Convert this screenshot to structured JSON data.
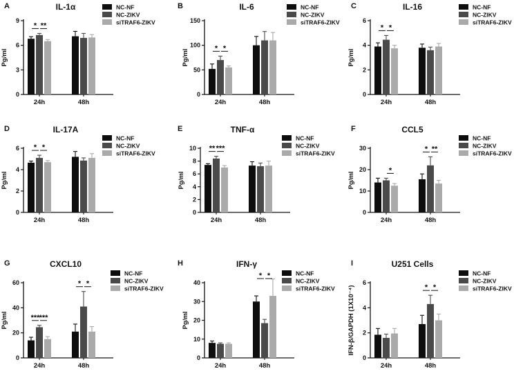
{
  "series_colors": [
    "#0d0d0d",
    "#4a4a4a",
    "#aaaaaa"
  ],
  "chart_data": [
    {
      "type": "bar",
      "panel": "A",
      "title": "IL-1α",
      "ylabel": "Pg/ml",
      "ylim": [
        0,
        9
      ],
      "yticks": [
        0,
        3,
        6,
        9
      ],
      "categories": [
        "24h",
        "48h"
      ],
      "series": [
        {
          "name": "NC-NF",
          "values": [
            6.8,
            7.1
          ],
          "errors": [
            0.25,
            0.6
          ]
        },
        {
          "name": "NC-ZIKV",
          "values": [
            7.25,
            6.9
          ],
          "errors": [
            0.2,
            0.55
          ]
        },
        {
          "name": "siTRAF6-ZIKV",
          "values": [
            6.5,
            6.95
          ],
          "errors": [
            0.2,
            0.35
          ]
        }
      ],
      "significance": [
        {
          "category": "24h",
          "from": 0,
          "to": 1,
          "label": "*"
        },
        {
          "category": "24h",
          "from": 1,
          "to": 2,
          "label": "**"
        }
      ]
    },
    {
      "type": "bar",
      "panel": "B",
      "title": "IL-6",
      "ylabel": "Pg/ml",
      "ylim": [
        0,
        150
      ],
      "yticks": [
        0,
        50,
        100,
        150
      ],
      "categories": [
        "24h",
        "48h"
      ],
      "series": [
        {
          "name": "NC-NF",
          "values": [
            52,
            100
          ],
          "errors": [
            10,
            18
          ]
        },
        {
          "name": "NC-ZIKV",
          "values": [
            70,
            110
          ],
          "errors": [
            8,
            18
          ]
        },
        {
          "name": "siTRAF6-ZIKV",
          "values": [
            55,
            110
          ],
          "errors": [
            3,
            16
          ]
        }
      ],
      "significance": [
        {
          "category": "24h",
          "from": 0,
          "to": 1,
          "label": "*"
        },
        {
          "category": "24h",
          "from": 1,
          "to": 2,
          "label": "*"
        }
      ]
    },
    {
      "type": "bar",
      "panel": "C",
      "title": "IL-16",
      "ylabel": "Pg/ml",
      "ylim": [
        0,
        6
      ],
      "yticks": [
        0,
        2,
        4,
        6
      ],
      "categories": [
        "24h",
        "48h"
      ],
      "series": [
        {
          "name": "NC-NF",
          "values": [
            3.9,
            3.8
          ],
          "errors": [
            0.3,
            0.3
          ]
        },
        {
          "name": "NC-ZIKV",
          "values": [
            4.45,
            3.6
          ],
          "errors": [
            0.35,
            0.25
          ]
        },
        {
          "name": "siTRAF6-ZIKV",
          "values": [
            3.75,
            3.9
          ],
          "errors": [
            0.25,
            0.25
          ]
        }
      ],
      "significance": [
        {
          "category": "24h",
          "from": 0,
          "to": 1,
          "label": "*"
        },
        {
          "category": "24h",
          "from": 1,
          "to": 2,
          "label": "*"
        }
      ]
    },
    {
      "type": "bar",
      "panel": "D",
      "title": "IL-17A",
      "ylabel": "Pg/ml",
      "ylim": [
        0,
        6
      ],
      "yticks": [
        0,
        2,
        4,
        6
      ],
      "categories": [
        "24h",
        "48h"
      ],
      "series": [
        {
          "name": "NC-NF",
          "values": [
            4.65,
            5.2
          ],
          "errors": [
            0.15,
            0.5
          ]
        },
        {
          "name": "NC-ZIKV",
          "values": [
            5.1,
            4.85
          ],
          "errors": [
            0.25,
            0.25
          ]
        },
        {
          "name": "siTRAF6-ZIKV",
          "values": [
            4.7,
            5.1
          ],
          "errors": [
            0.15,
            0.4
          ]
        }
      ],
      "significance": [
        {
          "category": "24h",
          "from": 0,
          "to": 1,
          "label": "*"
        },
        {
          "category": "24h",
          "from": 1,
          "to": 2,
          "label": "*"
        }
      ]
    },
    {
      "type": "bar",
      "panel": "E",
      "title": "TNF-α",
      "ylabel": "Pg/ml",
      "ylim": [
        0,
        10
      ],
      "yticks": [
        0,
        2,
        4,
        6,
        8,
        10
      ],
      "categories": [
        "24h",
        "48h"
      ],
      "series": [
        {
          "name": "NC-NF",
          "values": [
            7.4,
            7.3
          ],
          "errors": [
            0.2,
            0.6
          ]
        },
        {
          "name": "NC-ZIKV",
          "values": [
            8.4,
            7.2
          ],
          "errors": [
            0.35,
            0.5
          ]
        },
        {
          "name": "siTRAF6-ZIKV",
          "values": [
            7.0,
            7.3
          ],
          "errors": [
            0.3,
            0.7
          ]
        }
      ],
      "significance": [
        {
          "category": "24h",
          "from": 0,
          "to": 1,
          "label": "**"
        },
        {
          "category": "24h",
          "from": 1,
          "to": 2,
          "label": "***"
        }
      ]
    },
    {
      "type": "bar",
      "panel": "F",
      "title": "CCL5",
      "ylabel": "Pg/ml",
      "ylim": [
        0,
        30
      ],
      "yticks": [
        0,
        10,
        20,
        30
      ],
      "categories": [
        "24h",
        "48h"
      ],
      "series": [
        {
          "name": "NC-NF",
          "values": [
            14,
            15.5
          ],
          "errors": [
            2,
            2.5
          ]
        },
        {
          "name": "NC-ZIKV",
          "values": [
            15,
            22
          ],
          "errors": [
            1,
            4
          ]
        },
        {
          "name": "siTRAF6-ZIKV",
          "values": [
            12.5,
            13.5
          ],
          "errors": [
            1,
            1.5
          ]
        }
      ],
      "significance": [
        {
          "category": "24h",
          "from": 1,
          "to": 2,
          "label": "*"
        },
        {
          "category": "48h",
          "from": 0,
          "to": 1,
          "label": "*"
        },
        {
          "category": "48h",
          "from": 1,
          "to": 2,
          "label": "**"
        }
      ]
    },
    {
      "type": "bar",
      "panel": "G",
      "title": "CXCL10",
      "ylabel": "Pg/ml",
      "ylim": [
        0,
        60
      ],
      "yticks": [
        0,
        20,
        40,
        60
      ],
      "categories": [
        "24h",
        "48h"
      ],
      "series": [
        {
          "name": "NC-NF",
          "values": [
            14,
            21
          ],
          "errors": [
            2.5,
            6
          ]
        },
        {
          "name": "NC-ZIKV",
          "values": [
            24.5,
            41
          ],
          "errors": [
            1.5,
            12
          ]
        },
        {
          "name": "siTRAF6-ZIKV",
          "values": [
            15,
            21
          ],
          "errors": [
            2,
            4
          ]
        }
      ],
      "significance": [
        {
          "category": "24h",
          "from": 0,
          "to": 1,
          "label": "***"
        },
        {
          "category": "24h",
          "from": 1,
          "to": 2,
          "label": "***"
        },
        {
          "category": "48h",
          "from": 0,
          "to": 1,
          "label": "*"
        },
        {
          "category": "48h",
          "from": 1,
          "to": 2,
          "label": "*"
        }
      ]
    },
    {
      "type": "bar",
      "panel": "H",
      "title": "IFN-γ",
      "ylabel": "Pg/ml",
      "ylim": [
        0,
        40
      ],
      "yticks": [
        0,
        10,
        20,
        30,
        40
      ],
      "categories": [
        "24h",
        "48h"
      ],
      "series": [
        {
          "name": "NC-NF",
          "values": [
            8,
            30
          ],
          "errors": [
            1,
            3
          ]
        },
        {
          "name": "NC-ZIKV",
          "values": [
            7.5,
            18.5
          ],
          "errors": [
            0.5,
            2
          ]
        },
        {
          "name": "siTRAF6-ZIKV",
          "values": [
            7.5,
            33
          ],
          "errors": [
            0.5,
            9
          ]
        }
      ],
      "significance": [
        {
          "category": "48h",
          "from": 0,
          "to": 1,
          "label": "*"
        },
        {
          "category": "48h",
          "from": 1,
          "to": 2,
          "label": "*"
        }
      ]
    },
    {
      "type": "bar",
      "panel": "I",
      "title": "U251 Cells",
      "ylabel": "IFN-β/GAPDH (1X10⁻⁴)",
      "ylim": [
        0,
        6
      ],
      "yticks": [
        0,
        2,
        4,
        6
      ],
      "categories": [
        "24h",
        "48h"
      ],
      "series": [
        {
          "name": "NC-NF",
          "values": [
            1.85,
            2.7
          ],
          "errors": [
            0.5,
            0.7
          ]
        },
        {
          "name": "NC-ZIKV",
          "values": [
            1.6,
            4.3
          ],
          "errors": [
            0.3,
            0.7
          ]
        },
        {
          "name": "siTRAF6-ZIKV",
          "values": [
            1.95,
            3.0
          ],
          "errors": [
            0.4,
            0.5
          ]
        }
      ],
      "significance": [
        {
          "category": "48h",
          "from": 0,
          "to": 1,
          "label": "*"
        },
        {
          "category": "48h",
          "from": 1,
          "to": 2,
          "label": "*"
        }
      ]
    }
  ]
}
